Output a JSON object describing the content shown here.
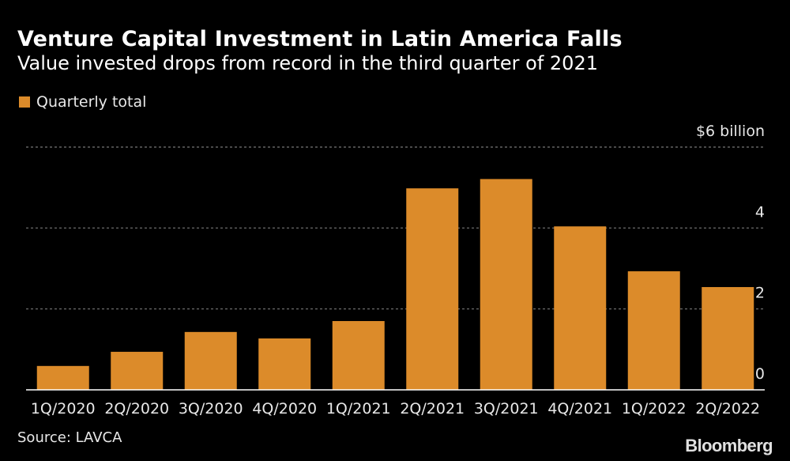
{
  "chart_data": {
    "type": "bar",
    "title": "Venture Capital Investment in Latin America Falls",
    "subtitle": "Value invested drops from record in the third quarter of 2021",
    "legend": [
      {
        "name": "Quarterly total",
        "color": "#dc8b2a"
      }
    ],
    "legend_position": "top-left",
    "categories": [
      "1Q/2020",
      "2Q/2020",
      "3Q/2020",
      "4Q/2020",
      "1Q/2021",
      "2Q/2021",
      "3Q/2021",
      "4Q/2021",
      "1Q/2022",
      "2Q/2022"
    ],
    "series": [
      {
        "name": "Quarterly total",
        "values": [
          0.59,
          0.94,
          1.43,
          1.27,
          1.7,
          4.98,
          5.21,
          4.04,
          2.93,
          2.54
        ],
        "color": "#dc8b2a"
      }
    ],
    "xlabel": "",
    "ylabel": "$ billion",
    "ylim": [
      0,
      6
    ],
    "yticks": [
      {
        "value": 0,
        "label": "0"
      },
      {
        "value": 2,
        "label": "2"
      },
      {
        "value": 4,
        "label": "4"
      },
      {
        "value": 6,
        "label": "$6 billion"
      }
    ],
    "y_axis_position": "right",
    "grid": true,
    "source": "Source: LAVCA",
    "brand": "Bloomberg"
  }
}
